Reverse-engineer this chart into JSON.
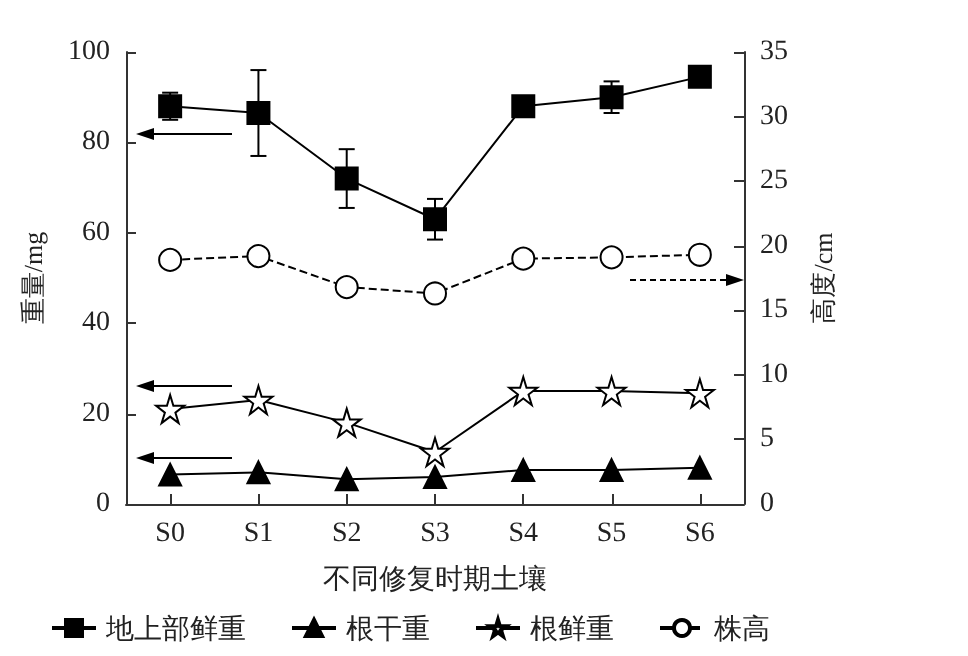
{
  "chart_data": {
    "type": "line",
    "xlabel": "不同修复时期土壤",
    "ylabel": "重量/mg",
    "y2label": "高度/cm",
    "categories": [
      "S0",
      "S1",
      "S2",
      "S3",
      "S4",
      "S5",
      "S6"
    ],
    "series": [
      {
        "name": "地上部鲜重",
        "color": "#000000",
        "marker": "square",
        "line_style": "solid",
        "values": [
          88,
          86.5,
          72,
          63,
          88,
          90,
          94.5
        ],
        "errors": [
          3,
          9.5,
          6.5,
          4.5,
          null,
          3.5,
          null
        ]
      },
      {
        "name": "根干重",
        "color": "#000000",
        "marker": "triangle",
        "line_style": "solid",
        "values": [
          6.5,
          7,
          5.5,
          6,
          7.5,
          7.5,
          8
        ]
      },
      {
        "name": "根鲜重",
        "color": "#000000",
        "marker": "star",
        "line_style": "solid",
        "values": [
          21,
          23,
          18,
          11.5,
          25,
          25,
          24.5
        ]
      },
      {
        "name": "株高",
        "color": "#000000",
        "marker": "circle",
        "line_style": "dashed",
        "axis": "y2",
        "values": [
          18.9,
          19.2,
          16.8,
          16.3,
          19,
          19.1,
          19.3
        ],
        "errors": [
          null,
          0.5,
          null,
          null,
          null,
          null,
          null
        ]
      }
    ],
    "ylim": [
      0,
      100
    ],
    "yticks": [
      0,
      20,
      40,
      60,
      80,
      100
    ],
    "y2lim": [
      0,
      35
    ],
    "y2ticks": [
      0,
      5,
      10,
      15,
      20,
      25,
      30,
      35
    ],
    "grid": false,
    "legend": "bottom"
  }
}
